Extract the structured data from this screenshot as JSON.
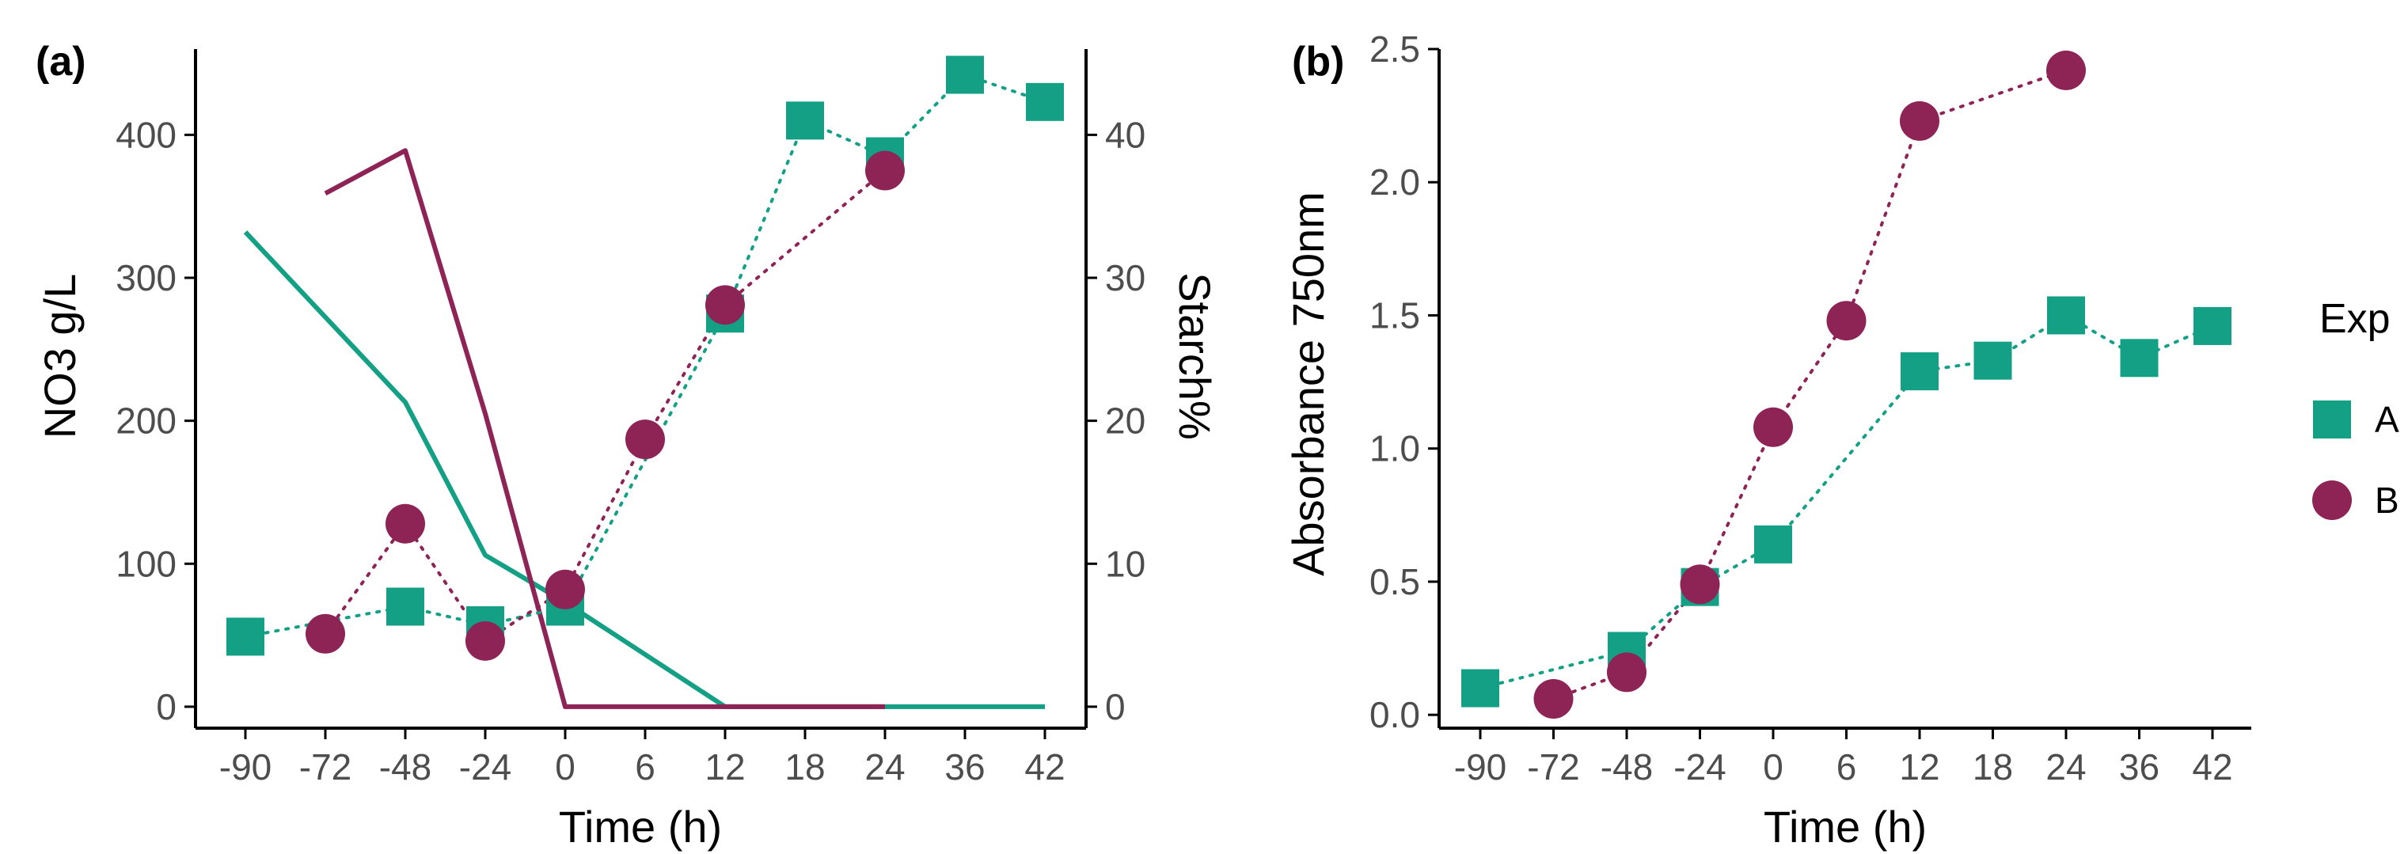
{
  "colors": {
    "A": "#14a085",
    "B": "#8e2356",
    "axis": "#000000",
    "tick": "#4d4d4d"
  },
  "chart_data": [
    {
      "panel_label": "(a)",
      "type": "line",
      "xlabel": "Time (h)",
      "ylabel": "NO3 g/L",
      "ylabel_right": "Starch%",
      "categories": [
        "-90",
        "-72",
        "-48",
        "-24",
        "0",
        "6",
        "12",
        "18",
        "24",
        "36",
        "42"
      ],
      "ylim": [
        -15,
        460
      ],
      "yticks": [
        0,
        100,
        200,
        300,
        400
      ],
      "ylim_right": [
        -1.5,
        46
      ],
      "yticks_right": [
        0,
        10,
        20,
        30,
        40
      ],
      "series": [
        {
          "name": "A",
          "kind": "points",
          "axis": "left",
          "marker": "square",
          "line": "dotted",
          "points": [
            [
              "-90",
              49
            ],
            [
              "-48",
              70
            ],
            [
              "-24",
              57
            ],
            [
              "0",
              70
            ],
            [
              "12",
              275
            ],
            [
              "18",
              410
            ],
            [
              "24",
              385
            ],
            [
              "36",
              442
            ],
            [
              "42",
              423
            ]
          ]
        },
        {
          "name": "B",
          "kind": "points",
          "axis": "left",
          "marker": "circle",
          "line": "dotted",
          "points": [
            [
              "-72",
              51
            ],
            [
              "-48",
              128
            ],
            [
              "-24",
              46
            ],
            [
              "0",
              82
            ],
            [
              "6",
              187
            ],
            [
              "12",
              281
            ],
            [
              "24",
              375
            ]
          ]
        },
        {
          "name": "A",
          "kind": "line",
          "axis": "right",
          "marker": "none",
          "line": "solid",
          "points": [
            [
              "-90",
              33.2
            ],
            [
              "-48",
              21.3
            ],
            [
              "-24",
              10.6
            ],
            [
              "0",
              7.3
            ],
            [
              "12",
              0
            ],
            [
              "24",
              0
            ],
            [
              "42",
              0
            ]
          ]
        },
        {
          "name": "B",
          "kind": "line",
          "axis": "right",
          "marker": "none",
          "line": "solid",
          "points": [
            [
              "-72",
              35.9
            ],
            [
              "-48",
              38.9
            ],
            [
              "-24",
              20.5
            ],
            [
              "0",
              0
            ],
            [
              "12",
              0
            ],
            [
              "24",
              0
            ]
          ]
        }
      ]
    },
    {
      "panel_label": "(b)",
      "type": "line",
      "xlabel": "Time (h)",
      "ylabel": "Absorbance 750nm",
      "categories": [
        "-90",
        "-72",
        "-48",
        "-24",
        "0",
        "6",
        "12",
        "18",
        "24",
        "36",
        "42"
      ],
      "ylim": [
        -0.05,
        2.5
      ],
      "yticks": [
        0.0,
        0.5,
        1.0,
        1.5,
        2.0,
        2.5
      ],
      "ytick_labels": [
        "0.0",
        "0.5",
        "1.0",
        "1.5",
        "2.0",
        "2.5"
      ],
      "series": [
        {
          "name": "A",
          "kind": "points",
          "marker": "square",
          "line": "dotted",
          "points": [
            [
              "-90",
              0.1
            ],
            [
              "-48",
              0.24
            ],
            [
              "-24",
              0.48
            ],
            [
              "0",
              0.64
            ],
            [
              "12",
              1.29
            ],
            [
              "18",
              1.33
            ],
            [
              "24",
              1.5
            ],
            [
              "36",
              1.34
            ],
            [
              "42",
              1.46
            ]
          ]
        },
        {
          "name": "B",
          "kind": "points",
          "marker": "circle",
          "line": "dotted",
          "points": [
            [
              "-72",
              0.06
            ],
            [
              "-48",
              0.16
            ],
            [
              "-24",
              0.49
            ],
            [
              "0",
              1.08
            ],
            [
              "6",
              1.48
            ],
            [
              "12",
              2.23
            ],
            [
              "24",
              2.42
            ]
          ]
        }
      ]
    }
  ],
  "legend": {
    "title": "Exp",
    "items": [
      {
        "label": "A",
        "marker": "square",
        "color_key": "A"
      },
      {
        "label": "B",
        "marker": "circle",
        "color_key": "B"
      }
    ]
  }
}
